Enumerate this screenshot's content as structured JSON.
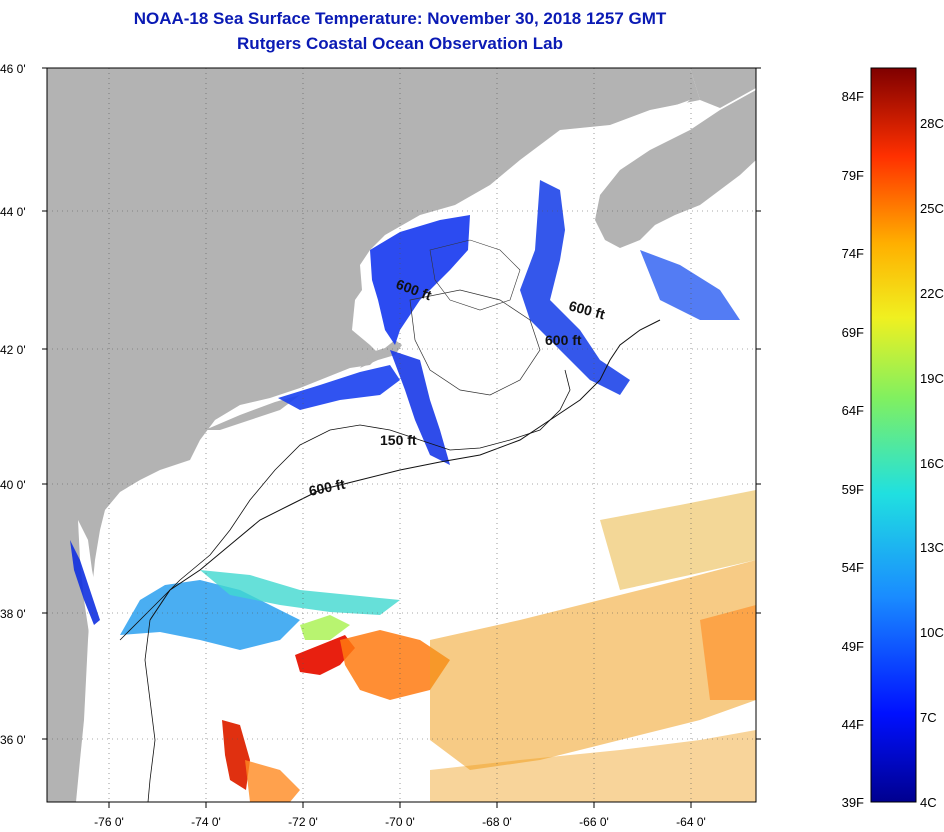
{
  "title": "NOAA-18 Sea Surface Temperature:  November 30, 2018 1257 GMT",
  "subtitle": "Rutgers Coastal Ocean Observation Lab",
  "map": {
    "lat_labels": [
      "46 0'",
      "44 0'",
      "42 0'",
      "40 0'",
      "38 0'",
      "36 0'"
    ],
    "lon_labels": [
      "-76 0'",
      "-74 0'",
      "-72 0'",
      "-70 0'",
      "-68 0'",
      "-66 0'",
      "-64 0'"
    ],
    "contour_labels": [
      "600 ft",
      "600 ft",
      "600 ft",
      "600 ft",
      "150 ft"
    ],
    "land_color": "#b3b3b3",
    "ocean_color": "#ffffff"
  },
  "colorbar": {
    "fahrenheit_labels": [
      "84F",
      "79F",
      "74F",
      "69F",
      "64F",
      "59F",
      "54F",
      "49F",
      "44F",
      "39F"
    ],
    "celsius_labels": [
      "28C",
      "25C",
      "22C",
      "19C",
      "16C",
      "13C",
      "10C",
      "7C",
      "4C"
    ],
    "colors": [
      "#7f0000",
      "#d40000",
      "#ff4000",
      "#ffa500",
      "#ffe000",
      "#b0f040",
      "#40e0c0",
      "#10a0f0",
      "#1040e0",
      "#00008f"
    ]
  }
}
